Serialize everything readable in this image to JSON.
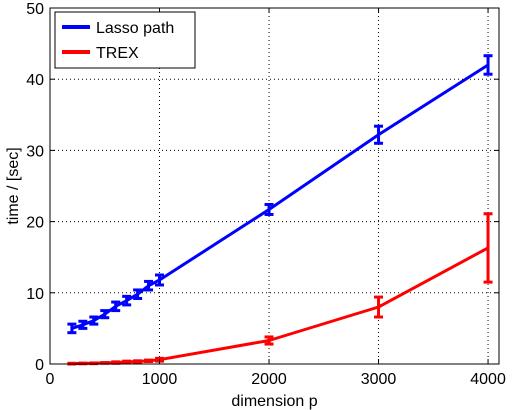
{
  "chart_data": {
    "type": "line",
    "xlabel": "dimension p",
    "ylabel": "time / [sec]",
    "xlim": [
      0,
      4100
    ],
    "ylim": [
      0,
      50
    ],
    "xticks": [
      0,
      1000,
      2000,
      3000,
      4000
    ],
    "yticks": [
      0,
      10,
      20,
      30,
      40,
      50
    ],
    "grid": true,
    "legend_position": "top-left",
    "series": [
      {
        "name": "Lasso path",
        "color": "#0000ff",
        "x": [
          200,
          300,
          400,
          500,
          600,
          700,
          800,
          900,
          1000,
          2000,
          3000,
          4000
        ],
        "y": [
          5.0,
          5.5,
          6.1,
          7.0,
          8.1,
          8.9,
          9.8,
          11.0,
          11.8,
          21.7,
          32.2,
          42.0
        ],
        "err": [
          0.6,
          0.5,
          0.5,
          0.5,
          0.6,
          0.6,
          0.6,
          0.6,
          0.7,
          0.7,
          1.2,
          1.3
        ]
      },
      {
        "name": "TREX",
        "color": "#ff0000",
        "x": [
          200,
          300,
          400,
          500,
          600,
          700,
          800,
          900,
          1000,
          2000,
          3000,
          4000
        ],
        "y": [
          0.05,
          0.08,
          0.1,
          0.15,
          0.2,
          0.3,
          0.35,
          0.45,
          0.6,
          3.3,
          8.0,
          16.3
        ],
        "err": [
          0.05,
          0.05,
          0.05,
          0.05,
          0.1,
          0.1,
          0.1,
          0.1,
          0.2,
          0.5,
          1.4,
          4.8
        ]
      }
    ]
  }
}
